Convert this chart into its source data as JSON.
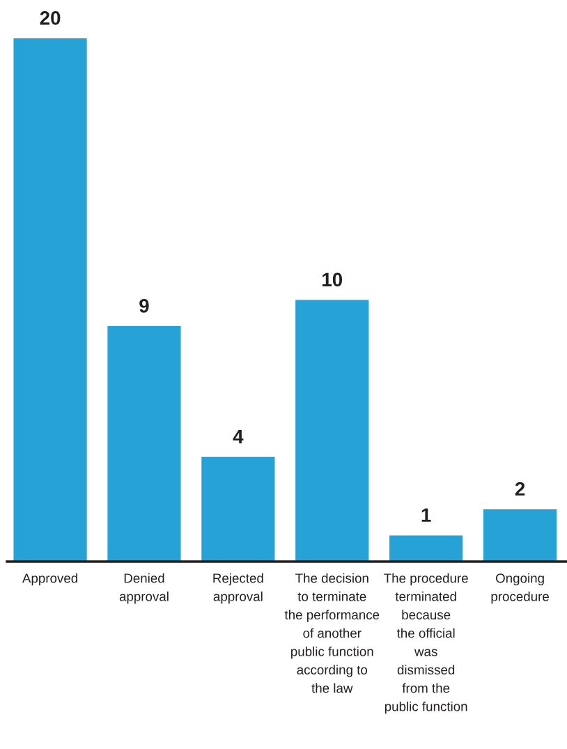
{
  "chart_data": {
    "type": "bar",
    "categories": [
      "Approved",
      "Denied\napproval",
      "Rejected\napproval",
      "The decision\nto terminate\nthe performance\nof another\npublic function\naccording to\nthe law",
      "The procedure\nterminated\nbecause\nthe official\nwas\ndismissed\nfrom the\npublic function",
      "Ongoing\nprocedure"
    ],
    "values": [
      20,
      9,
      4,
      10,
      1,
      2
    ],
    "color": "#27a2d6",
    "ylim": [
      0,
      20
    ],
    "data_labels": true,
    "tick_labels": "x"
  }
}
